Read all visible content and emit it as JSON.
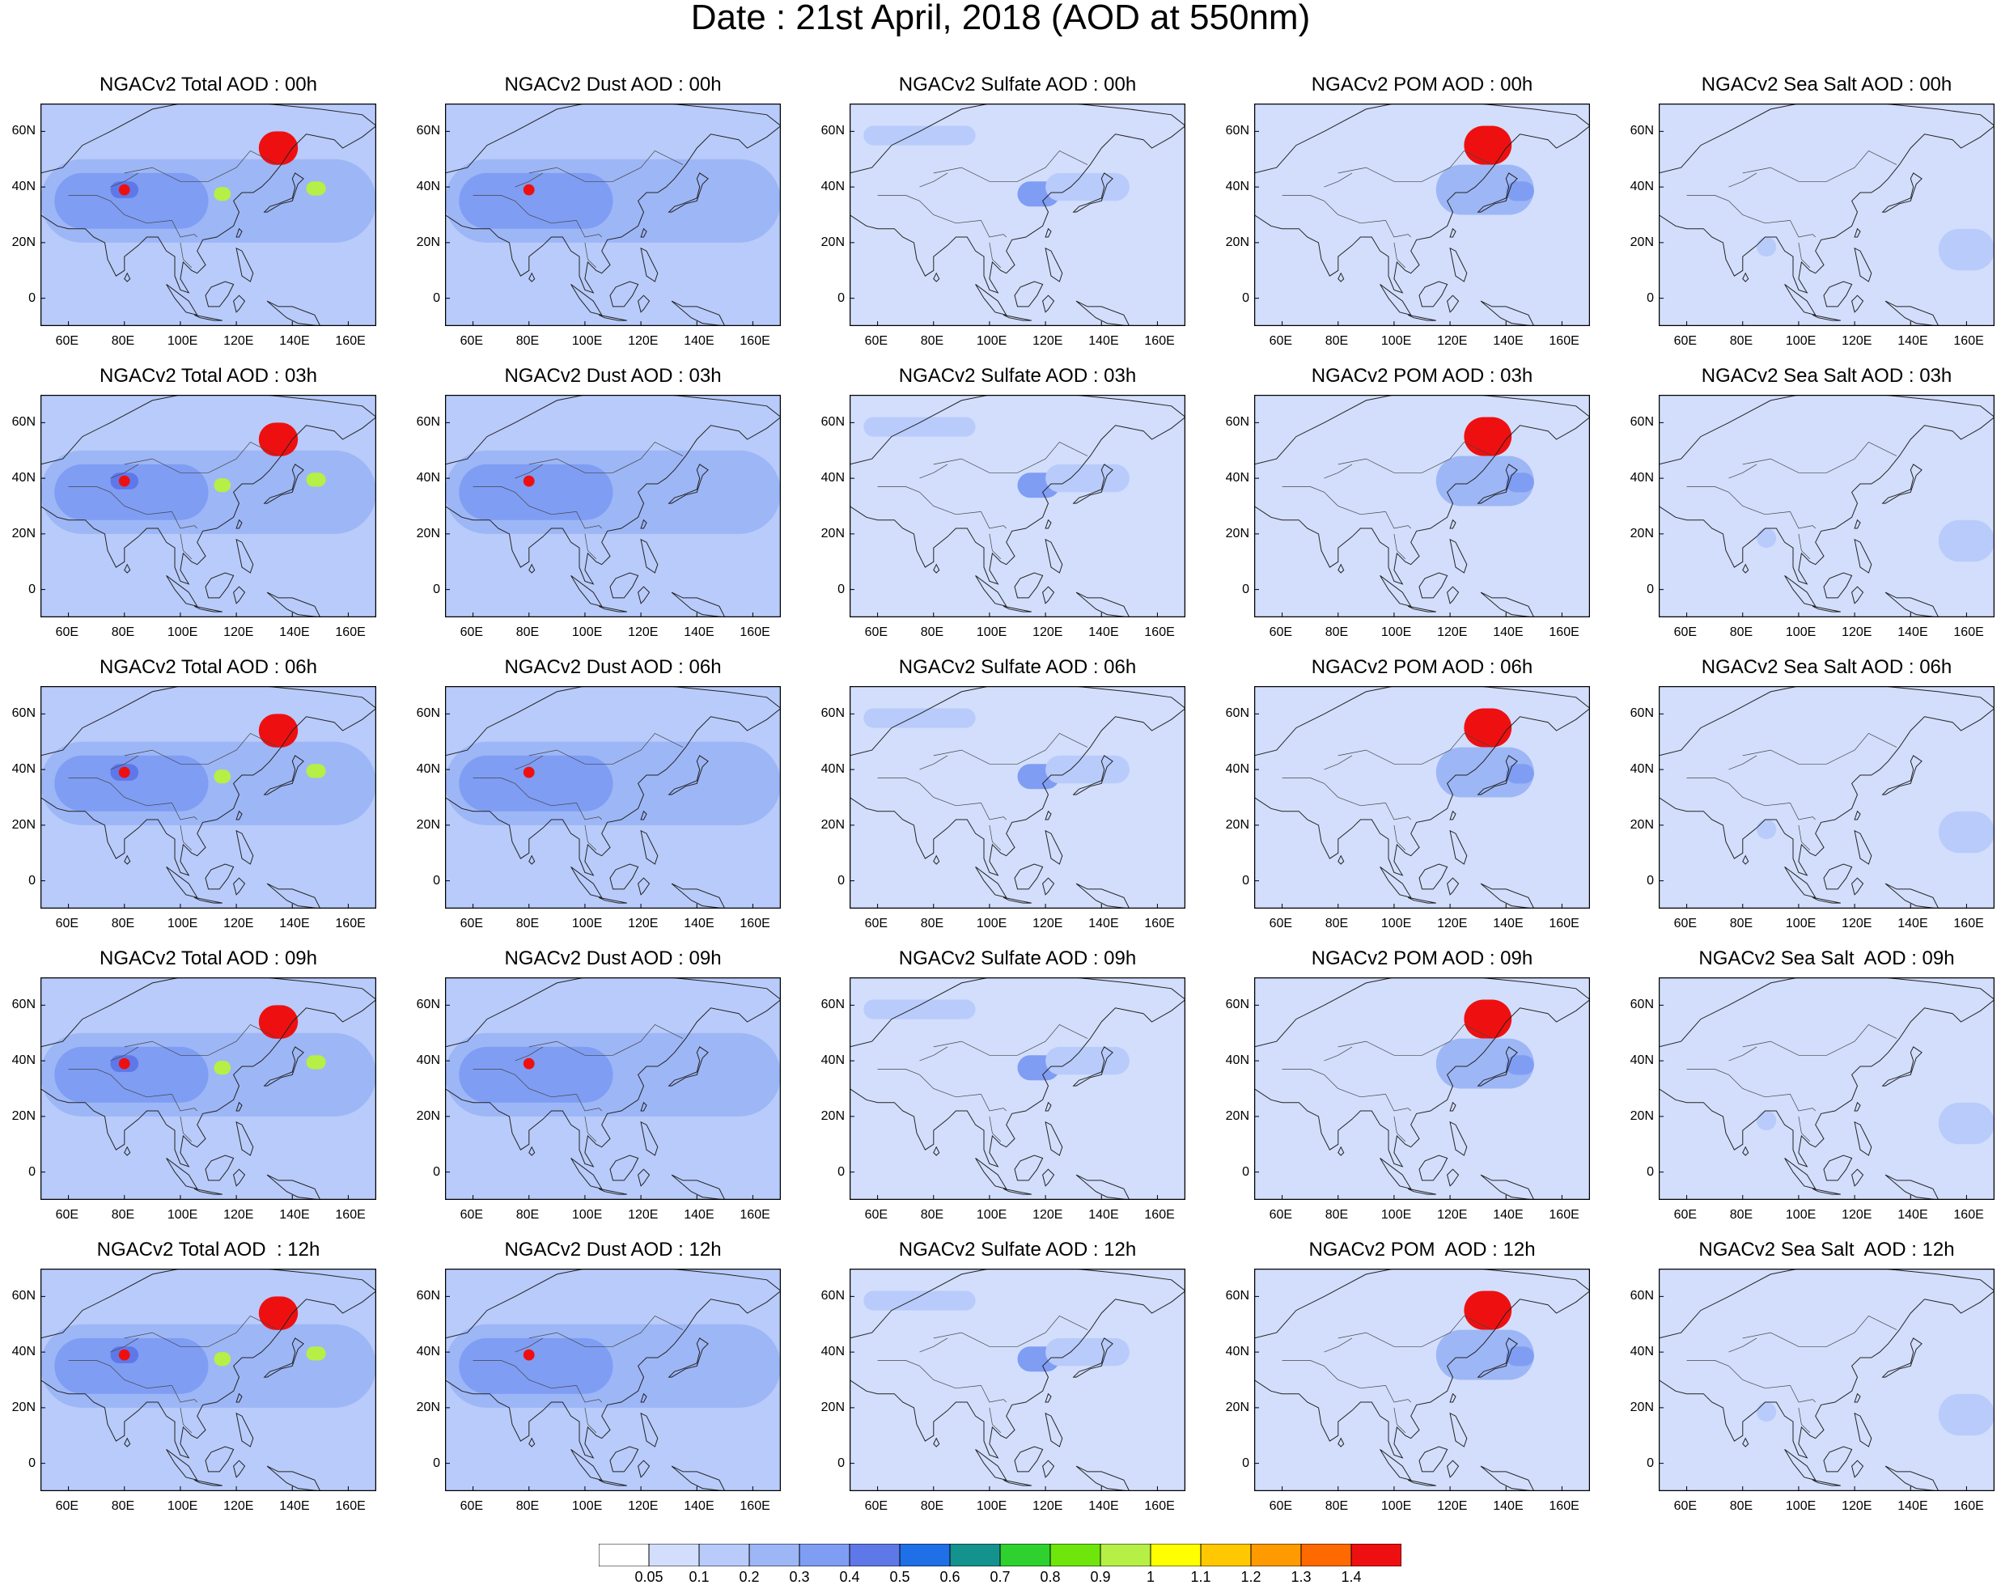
{
  "title": "Date : 21st April, 2018 (AOD at 550nm)",
  "chart_data": {
    "type": "heatmap",
    "layout": "5 rows x 5 columns of map panels",
    "x_ticks": [
      "60E",
      "80E",
      "100E",
      "120E",
      "140E",
      "160E"
    ],
    "y_ticks": [
      "60N",
      "40N",
      "20N",
      "0"
    ],
    "xlim": [
      50,
      170
    ],
    "ylim": [
      -10,
      70
    ],
    "grid": false,
    "colorbar": {
      "placement": "bottom",
      "levels": [
        "0.05",
        "0.1",
        "0.2",
        "0.3",
        "0.4",
        "0.5",
        "0.6",
        "0.7",
        "0.8",
        "0.9",
        "1",
        "1.1",
        "1.2",
        "1.3",
        "1.4"
      ],
      "colors": [
        "#ffffff",
        "#d2defc",
        "#b8cbfa",
        "#9db6f6",
        "#7f9df3",
        "#5f78e8",
        "#1f6fe6",
        "#14928e",
        "#2fd12f",
        "#6ee60b",
        "#b6ef45",
        "#ffff00",
        "#ffc800",
        "#ff9a00",
        "#ff6a00",
        "#ee1010"
      ]
    },
    "rows": [
      {
        "hour": "00h",
        "titles": [
          "NGACv2 Total AOD : 00h",
          "NGACv2 Dust AOD : 00h",
          "NGACv2 Sulfate AOD : 00h",
          "NGACv2 POM AOD : 00h",
          "NGACv2 Sea Salt AOD : 00h"
        ]
      },
      {
        "hour": "03h",
        "titles": [
          "NGACv2 Total AOD : 03h",
          "NGACv2 Dust AOD : 03h",
          "NGACv2 Sulfate AOD : 03h",
          "NGACv2 POM AOD : 03h",
          "NGACv2 Sea Salt AOD : 03h"
        ]
      },
      {
        "hour": "06h",
        "titles": [
          "NGACv2 Total AOD : 06h",
          "NGACv2 Dust AOD : 06h",
          "NGACv2 Sulfate AOD : 06h",
          "NGACv2 POM AOD : 06h",
          "NGACv2 Sea Salt AOD : 06h"
        ]
      },
      {
        "hour": "09h",
        "titles": [
          "NGACv2 Total AOD : 09h",
          "NGACv2 Dust AOD : 09h",
          "NGACv2 Sulfate AOD : 09h",
          "NGACv2 POM AOD : 09h",
          "NGACv2 Sea Salt  AOD : 09h"
        ]
      },
      {
        "hour": "12h",
        "titles": [
          "NGACv2 Total AOD  : 12h",
          "NGACv2 Dust AOD : 12h",
          "NGACv2 Sulfate AOD : 12h",
          "NGACv2 POM  AOD : 12h",
          "NGACv2 Sea Salt  AOD : 12h"
        ]
      }
    ],
    "species_features": {
      "Total": {
        "background_level": "0.1",
        "plumes": [
          {
            "lon": [
              50,
              170
            ],
            "lat": [
              20,
              50
            ],
            "level": "0.2"
          },
          {
            "lon": [
              55,
              110
            ],
            "lat": [
              25,
              45
            ],
            "level": "0.3"
          },
          {
            "lon": [
              75,
              85
            ],
            "lat": [
              36,
              42
            ],
            "level": "0.4"
          },
          {
            "lon": [
              78,
              82
            ],
            "lat": [
              37,
              41
            ],
            "level": "1.4"
          },
          {
            "lon": [
              128,
              142
            ],
            "lat": [
              48,
              60
            ],
            "level": "1.4"
          },
          {
            "lon": [
              112,
              118
            ],
            "lat": [
              35,
              40
            ],
            "level": "0.9"
          },
          {
            "lon": [
              145,
              152
            ],
            "lat": [
              37,
              42
            ],
            "level": "0.9"
          }
        ]
      },
      "Dust": {
        "background_level": "0.1",
        "plumes": [
          {
            "lon": [
              50,
              170
            ],
            "lat": [
              20,
              50
            ],
            "level": "0.2"
          },
          {
            "lon": [
              55,
              110
            ],
            "lat": [
              25,
              45
            ],
            "level": "0.3"
          },
          {
            "lon": [
              78,
              82
            ],
            "lat": [
              37,
              41
            ],
            "level": "1.4"
          }
        ]
      },
      "Sulfate": {
        "background_level": "0.05",
        "plumes": [
          {
            "lon": [
              55,
              95
            ],
            "lat": [
              55,
              62
            ],
            "level": "0.1"
          },
          {
            "lon": [
              110,
              125
            ],
            "lat": [
              33,
              42
            ],
            "level": "0.3"
          },
          {
            "lon": [
              120,
              150
            ],
            "lat": [
              35,
              45
            ],
            "level": "0.1"
          }
        ]
      },
      "POM": {
        "background_level": "0.05",
        "plumes": [
          {
            "lon": [
              125,
              142
            ],
            "lat": [
              48,
              62
            ],
            "level": "1.4"
          },
          {
            "lon": [
              115,
              150
            ],
            "lat": [
              30,
              48
            ],
            "level": "0.2"
          },
          {
            "lon": [
              140,
              150
            ],
            "lat": [
              35,
              42
            ],
            "level": "0.3"
          }
        ]
      },
      "Sea Salt": {
        "background_level": "0.05",
        "plumes": [
          {
            "lon": [
              85,
              92
            ],
            "lat": [
              15,
              22
            ],
            "level": "0.1"
          },
          {
            "lon": [
              150,
              170
            ],
            "lat": [
              10,
              25
            ],
            "level": "0.1"
          }
        ]
      }
    }
  }
}
